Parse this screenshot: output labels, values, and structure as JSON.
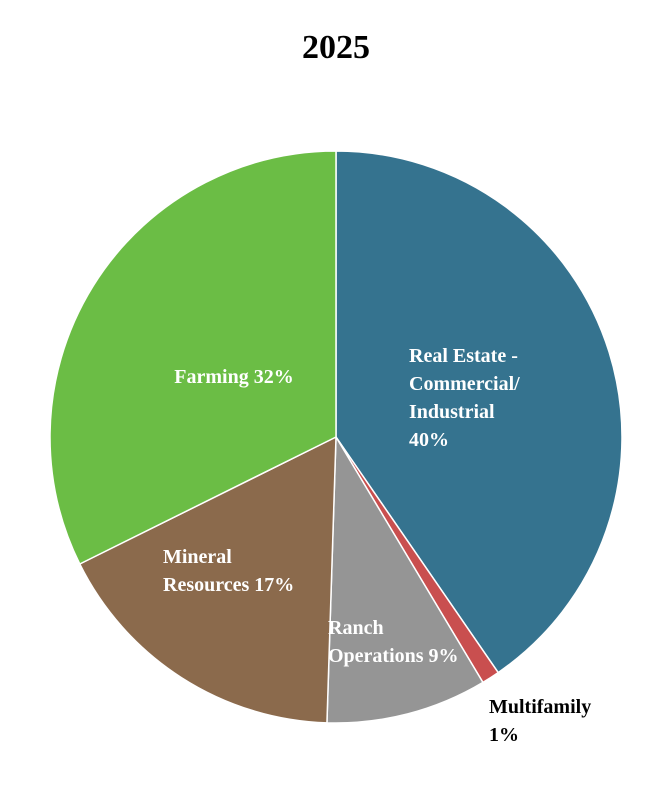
{
  "chart_data": {
    "type": "pie",
    "title": "2025",
    "slices": [
      {
        "label": "Real Estate - Commercial/ Industrial",
        "value": 40,
        "value_label": "40%",
        "color": "#35738F",
        "label_color": "#ffffff"
      },
      {
        "label": "Multifamily",
        "value": 1,
        "value_label": "1%",
        "color": "#C94F4F",
        "label_color": "#000000"
      },
      {
        "label": "Ranch Operations",
        "value": 9,
        "value_label": "9%",
        "color": "#959595",
        "label_color": "#ffffff"
      },
      {
        "label": "Mineral Resources",
        "value": 17,
        "value_label": "17%",
        "color": "#8B6A4C",
        "label_color": "#ffffff"
      },
      {
        "label": "Farming",
        "value": 32,
        "value_label": "32%",
        "color": "#6BBD45",
        "label_color": "#ffffff"
      }
    ],
    "labels_display": [
      [
        "Real Estate -",
        "Commercial/",
        "Industrial",
        "40%"
      ],
      [
        "Multifamily",
        "1%"
      ],
      [
        "Ranch",
        "Operations 9%"
      ],
      [
        "Mineral",
        "Resources 17%"
      ],
      [
        "Farming 32%"
      ]
    ],
    "start_angle_deg": 0,
    "direction": "clockwise",
    "legend": "none"
  }
}
